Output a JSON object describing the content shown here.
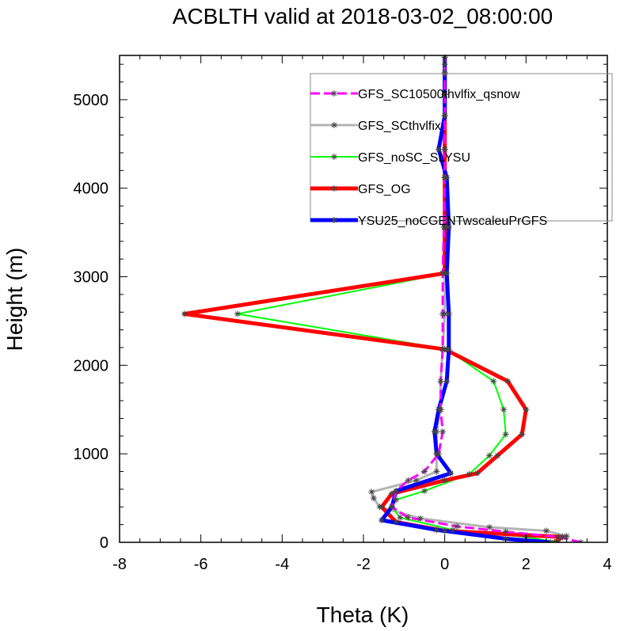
{
  "chart_data": {
    "type": "line",
    "title": "ACBLTH valid at 2018-03-02_08:00:00",
    "xlabel": "Theta (K)",
    "ylabel": "Height (m)",
    "xlim": [
      -8,
      4
    ],
    "ylim": [
      0,
      5500
    ],
    "xticks": [
      -8,
      -6,
      -4,
      -2,
      0,
      2,
      4
    ],
    "xtick_labels": [
      "-8",
      "-6",
      "-4",
      "-2",
      "0",
      "2",
      "4"
    ],
    "yticks": [
      0,
      1000,
      2000,
      3000,
      4000,
      5000
    ],
    "ytick_labels": [
      "0",
      "1000",
      "2000",
      "3000",
      "4000",
      "5000"
    ],
    "grid": false,
    "legend_position": "top-right",
    "series": [
      {
        "name": "GFS_SC10500thvlfix_qsnow",
        "color": "#ff00ff",
        "dash": "dashed",
        "width": 3,
        "x": [
          3.35,
          2.8,
          1.5,
          0.3,
          -0.9,
          -1.3,
          -1.2,
          -0.9,
          -0.5,
          -0.15,
          -0.05,
          -0.1,
          -0.1,
          -0.05,
          -0.05,
          -0.05,
          -0.02,
          0.0,
          0.0,
          0.0,
          0.0,
          0.0,
          0.0
        ],
        "y": [
          0,
          60,
          120,
          180,
          280,
          400,
          580,
          700,
          800,
          1000,
          1250,
          1500,
          1820,
          2180,
          2580,
          3040,
          3560,
          4120,
          4440,
          4820,
          5060,
          5300,
          5480
        ]
      },
      {
        "name": "GFS_SCthvlfix",
        "color": "#b4b4b4",
        "dash": "solid",
        "width": 3,
        "x": [
          3.0,
          2.5,
          1.1,
          -0.6,
          -1.6,
          -1.75,
          -1.8,
          -0.7,
          -0.2,
          -0.2,
          -0.2,
          -0.1,
          -0.1,
          -0.05,
          0.0,
          0.0,
          0.0,
          0.0,
          0.0,
          0.0,
          0.0,
          0.0
        ],
        "y": [
          70,
          130,
          170,
          270,
          400,
          500,
          570,
          700,
          800,
          1000,
          1250,
          1500,
          1820,
          2180,
          2580,
          3040,
          3560,
          4120,
          4440,
          4820,
          5060,
          5300
        ]
      },
      {
        "name": "GFS_noSC_SLYSU",
        "color": "#00ff00",
        "dash": "solid",
        "width": 2,
        "x": [
          2.8,
          2.0,
          0.2,
          -1.1,
          -1.3,
          -1.2,
          -0.5,
          0.6,
          1.1,
          1.5,
          1.45,
          1.2,
          0.05,
          -5.1,
          0.05,
          0.0,
          0.0,
          0.0,
          0.0,
          0.0,
          0.0
        ],
        "y": [
          0,
          60,
          140,
          280,
          400,
          480,
          580,
          770,
          980,
          1220,
          1500,
          1820,
          2180,
          2580,
          3040,
          3560,
          4120,
          4440,
          4820,
          5060,
          5300
        ]
      },
      {
        "name": "GFS_OG",
        "color": "#ff0000",
        "dash": "solid",
        "width": 5,
        "x": [
          2.7,
          2.9,
          0.0,
          -1.2,
          -1.55,
          -1.3,
          0.0,
          0.8,
          1.3,
          1.9,
          2.0,
          1.55,
          0.0,
          -6.4,
          0.0,
          0.0,
          0.0,
          0.0,
          0.0,
          0.0,
          0.0
        ],
        "y": [
          0,
          60,
          130,
          230,
          400,
          550,
          700,
          780,
          980,
          1220,
          1500,
          1820,
          2180,
          2580,
          3040,
          3560,
          4120,
          4440,
          4820,
          5060,
          5300
        ]
      },
      {
        "name": "YSU25_noCGENTwscaleuPrGFS",
        "color": "#0000ff",
        "dash": "solid",
        "width": 5,
        "x": [
          2.6,
          1.5,
          -0.2,
          -1.55,
          -1.3,
          -1.2,
          0.15,
          -0.2,
          -0.25,
          -0.15,
          0.05,
          0.1,
          0.1,
          0.05,
          0.1,
          0.05,
          -0.15,
          0.0,
          0.0,
          0.0,
          0.0,
          0.0
        ],
        "y": [
          0,
          40,
          140,
          250,
          400,
          580,
          780,
          1000,
          1250,
          1500,
          1820,
          2180,
          2580,
          3040,
          3560,
          4120,
          4440,
          4820,
          5060,
          5300,
          5400,
          5480
        ]
      }
    ]
  }
}
